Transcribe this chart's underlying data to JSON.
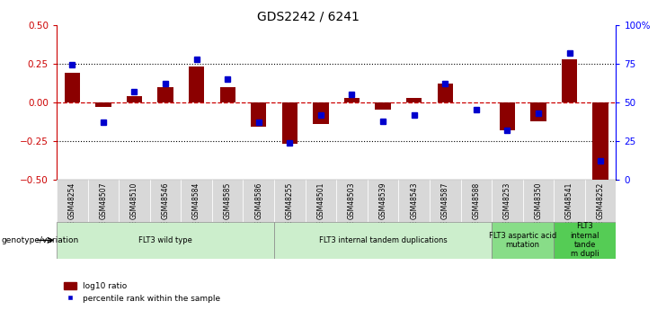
{
  "title": "GDS2242 / 6241",
  "samples": [
    "GSM48254",
    "GSM48507",
    "GSM48510",
    "GSM48546",
    "GSM48584",
    "GSM48585",
    "GSM48586",
    "GSM48255",
    "GSM48501",
    "GSM48503",
    "GSM48539",
    "GSM48543",
    "GSM48587",
    "GSM48588",
    "GSM48253",
    "GSM48350",
    "GSM48541",
    "GSM48252"
  ],
  "log10_ratio": [
    0.19,
    -0.03,
    0.04,
    0.1,
    0.23,
    0.1,
    -0.16,
    -0.27,
    -0.14,
    0.03,
    -0.05,
    0.03,
    0.12,
    0.0,
    -0.18,
    -0.12,
    0.28,
    -0.52
  ],
  "percentile_rank": [
    74,
    37,
    57,
    62,
    78,
    65,
    37,
    24,
    42,
    55,
    38,
    42,
    62,
    45,
    32,
    43,
    82,
    12
  ],
  "ylim": [
    -0.5,
    0.5
  ],
  "yticks_left": [
    -0.5,
    -0.25,
    0.0,
    0.25,
    0.5
  ],
  "yticks_right": [
    0,
    25,
    50,
    75,
    100
  ],
  "groups": [
    {
      "label": "FLT3 wild type",
      "start": 0,
      "end": 7,
      "color": "#cceecc"
    },
    {
      "label": "FLT3 internal tandem duplications",
      "start": 7,
      "end": 14,
      "color": "#cceecc"
    },
    {
      "label": "FLT3 aspartic acid\nmutation",
      "start": 14,
      "end": 16,
      "color": "#88dd88"
    },
    {
      "label": "FLT3\ninternal\ntande\nm dupli",
      "start": 16,
      "end": 18,
      "color": "#55cc55"
    }
  ],
  "bar_color": "#8B0000",
  "dot_color": "#0000CD",
  "hline_color": "#CC0000",
  "group_label": "genotype/variation"
}
